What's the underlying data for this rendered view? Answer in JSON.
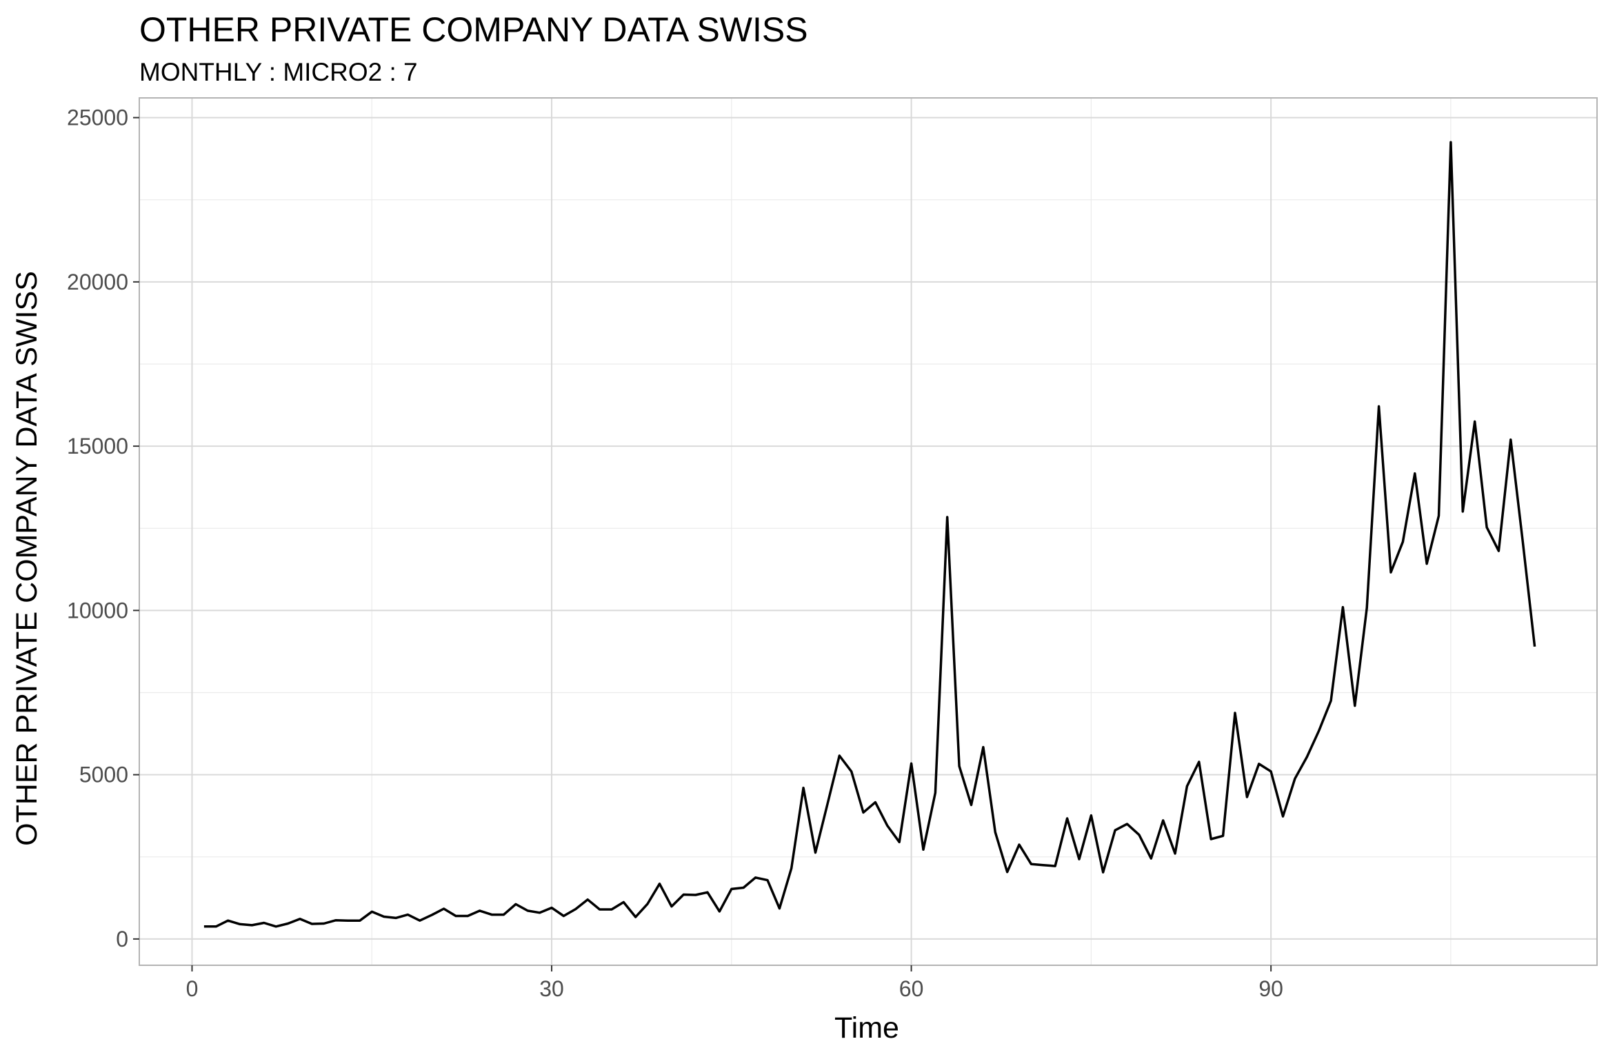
{
  "chart_data": {
    "type": "line",
    "title": "OTHER PRIVATE COMPANY DATA SWISS",
    "subtitle": "MONTHLY : MICRO2 : 7",
    "xlabel": "Time",
    "ylabel": "OTHER PRIVATE COMPANY DATA SWISS",
    "xlim": [
      -4.4,
      117.2
    ],
    "ylim": [
      -800,
      25600
    ],
    "x_ticks": [
      0,
      30,
      60,
      90
    ],
    "x_tick_labels": [
      "0",
      "30",
      "60",
      "90"
    ],
    "y_ticks": [
      0,
      5000,
      10000,
      15000,
      20000,
      25000
    ],
    "y_tick_labels": [
      "0",
      "5000",
      "10000",
      "15000",
      "20000",
      "25000"
    ],
    "grid": true,
    "line_color": "#000000",
    "x": [
      1,
      2,
      3,
      4,
      5,
      6,
      7,
      8,
      9,
      10,
      11,
      12,
      13,
      14,
      15,
      16,
      17,
      18,
      19,
      20,
      21,
      22,
      23,
      24,
      25,
      26,
      27,
      28,
      29,
      30,
      31,
      32,
      33,
      34,
      35,
      36,
      37,
      38,
      39,
      40,
      41,
      42,
      43,
      44,
      45,
      46,
      47,
      48,
      49,
      50,
      51,
      52,
      53,
      54,
      55,
      56,
      57,
      58,
      59,
      60,
      61,
      62,
      63,
      64,
      65,
      66,
      67,
      68,
      69,
      70,
      71,
      72,
      73,
      74,
      75,
      76,
      77,
      78,
      79,
      80,
      81,
      82,
      83,
      84,
      85,
      86,
      87,
      88,
      89,
      90,
      91,
      92,
      93,
      94,
      95,
      96,
      97,
      98,
      99,
      100,
      101,
      102,
      103,
      104,
      105,
      106,
      107,
      108,
      109,
      110,
      111,
      112
    ],
    "y": [
      380,
      380,
      560,
      450,
      420,
      490,
      380,
      470,
      610,
      460,
      470,
      570,
      560,
      560,
      830,
      680,
      640,
      740,
      560,
      730,
      920,
      700,
      700,
      860,
      740,
      740,
      1060,
      860,
      800,
      950,
      700,
      910,
      1200,
      900,
      900,
      1120,
      670,
      1070,
      1680,
      990,
      1350,
      1340,
      1420,
      840,
      1520,
      1560,
      1870,
      1790,
      930,
      2150,
      4600,
      2630,
      4100,
      5580,
      5100,
      3850,
      4160,
      3450,
      2950,
      5340,
      2720,
      4450,
      12840,
      5260,
      4080,
      5840,
      3250,
      2040,
      2870,
      2280,
      2250,
      2220,
      3670,
      2430,
      3760,
      2030,
      3310,
      3500,
      3170,
      2450,
      3610,
      2600,
      4650,
      5390,
      3040,
      3140,
      6880,
      4320,
      5330,
      5100,
      3730,
      4880,
      5540,
      6340,
      7250,
      10100,
      7100,
      10080,
      16210,
      11160,
      12090,
      14170,
      11420,
      12880,
      24250,
      13010,
      15750,
      12530,
      11810,
      15200,
      12110,
      8900
    ]
  }
}
